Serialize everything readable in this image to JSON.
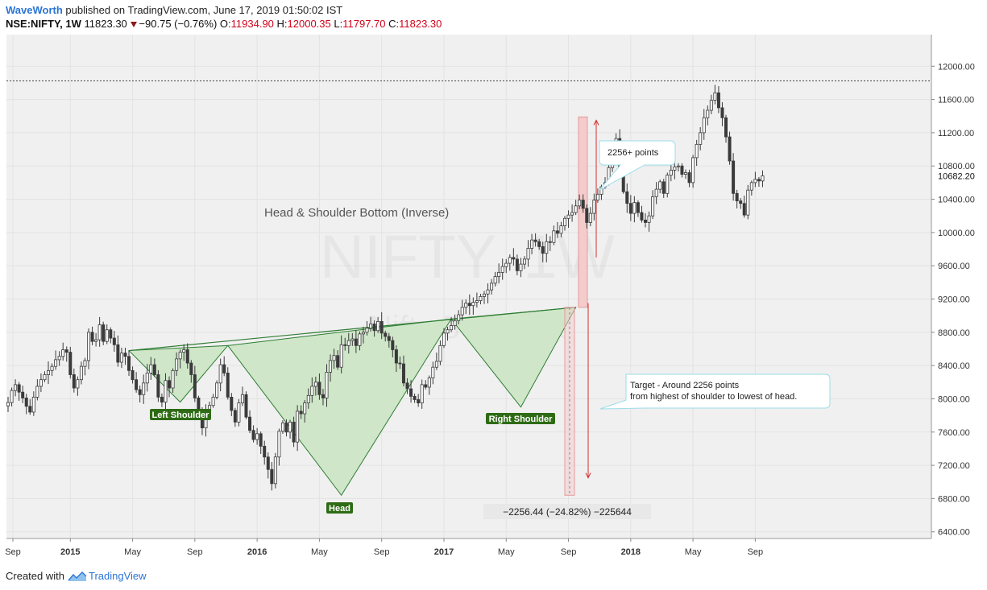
{
  "header": {
    "author": "WaveWorth",
    "published": "published on TradingView.com, June 17, 2019 01:50:02 IST",
    "symbol": "NSE:NIFTY, 1W",
    "last": "11823.30",
    "change": "−90.75 (−0.76%)",
    "o_label": "O:",
    "o_value": "11934.90",
    "h_label": "H:",
    "h_value": "12000.35",
    "l_label": "L:",
    "l_value": "11797.70",
    "c_label": "C:",
    "c_value": "11823.30"
  },
  "footer": {
    "created": "Created with",
    "brand": "TradingView"
  },
  "chart_data": {
    "type": "candlestick",
    "watermark_main": "NIFTY, 1W",
    "watermark_sub": "Nifty 50 Index",
    "y_ticks": [
      6400,
      6800,
      7200,
      7600,
      8000,
      8400,
      8800,
      9200,
      9600,
      10000,
      10400,
      10800,
      11200,
      11600,
      12000
    ],
    "y_tick_labels": [
      "6400.00",
      "6800.00",
      "7200.00",
      "7600.00",
      "8000.00",
      "8400.00",
      "8800.00",
      "9200.00",
      "9600.00",
      "10000.00",
      "10400.00",
      "10800.00",
      "11200.00",
      "11600.00",
      "12000.00"
    ],
    "last_price_label": "10682.20",
    "last_price": 10682.2,
    "high_line": 11823,
    "ylim": [
      6320,
      12380
    ],
    "x_ticks": [
      {
        "label": "Sep",
        "i": 0
      },
      {
        "label": "2015",
        "i": 17,
        "bold": true
      },
      {
        "label": "May",
        "i": 34
      },
      {
        "label": "Sep",
        "i": 51
      },
      {
        "label": "2016",
        "i": 68,
        "bold": true
      },
      {
        "label": "May",
        "i": 85
      },
      {
        "label": "Sep",
        "i": 102
      },
      {
        "label": "2017",
        "i": 119,
        "bold": true
      },
      {
        "label": "May",
        "i": 136
      },
      {
        "label": "Sep",
        "i": 153
      },
      {
        "label": "2018",
        "i": 170,
        "bold": true
      },
      {
        "label": "May",
        "i": 187
      },
      {
        "label": "Sep",
        "i": 204
      }
    ],
    "closes": [
      7955,
      8100,
      8170,
      8080,
      8010,
      7910,
      7840,
      8020,
      8150,
      8230,
      8290,
      8340,
      8390,
      8470,
      8510,
      8590,
      8560,
      8290,
      8130,
      8230,
      8390,
      8460,
      8800,
      8690,
      8710,
      8890,
      8690,
      8830,
      8730,
      8650,
      8440,
      8550,
      8510,
      8340,
      8230,
      8110,
      8050,
      8190,
      8310,
      8410,
      8290,
      8020,
      7960,
      8220,
      8130,
      8340,
      8480,
      8560,
      8590,
      8430,
      8290,
      8010,
      7810,
      7650,
      7850,
      7920,
      8020,
      8190,
      8410,
      8310,
      8020,
      7860,
      7720,
      7950,
      8050,
      7780,
      7620,
      7510,
      7580,
      7430,
      7300,
      7150,
      6980,
      7300,
      7610,
      7710,
      7600,
      7720,
      7480,
      7850,
      7820,
      7950,
      8040,
      8150,
      8200,
      8050,
      8010,
      8320,
      8460,
      8520,
      8380,
      8650,
      8640,
      8700,
      8720,
      8640,
      8780,
      8800,
      8850,
      8900,
      8820,
      8930,
      8790,
      8750,
      8700,
      8590,
      8430,
      8420,
      8190,
      8120,
      8030,
      7990,
      7950,
      8170,
      8140,
      8250,
      8380,
      8450,
      8640,
      8790,
      8830,
      8880,
      8940,
      9010,
      9100,
      9150,
      9120,
      9160,
      9180,
      9230,
      9260,
      9310,
      9390,
      9470,
      9520,
      9590,
      9630,
      9700,
      9680,
      9540,
      9620,
      9680,
      9810,
      9910,
      9890,
      9830,
      9750,
      9890,
      9880,
      10020,
      9990,
      10080,
      10170,
      10210,
      10240,
      10320,
      10390,
      10290,
      10120,
      10230,
      10390,
      10460,
      10550,
      10600,
      10780,
      11050,
      11130,
      10760,
      10490,
      10350,
      10230,
      10360,
      10240,
      10150,
      10120,
      10200,
      10430,
      10520,
      10610,
      10470,
      10690,
      10750,
      10790,
      10800,
      10700,
      10720,
      10600,
      10900,
      11060,
      11200,
      11380,
      11470,
      11590,
      11680,
      11500,
      11380,
      11150,
      10860,
      10470,
      10380,
      10350,
      10210,
      10510,
      10600,
      10640,
      10620,
      10682
    ]
  },
  "annotations": {
    "pattern_title": "Head & Shoulder Bottom (Inverse)",
    "left_shoulder": "Left Shoulder",
    "head": "Head",
    "right_shoulder": "Right Shoulder",
    "callout_points": "2256+ points",
    "callout_target_1": "Target - Around 2256 points",
    "callout_target_2": "from highest of shoulder to lowest of head.",
    "measure": "−2256.44 (−24.82%) −225644"
  },
  "colors": {
    "background": "#f0f0f0",
    "candle": "#3a3a3a",
    "pattern_fill": "#cfe6c9",
    "pattern_line": "#2e7d32",
    "label_bg": "#2e6b15",
    "red_arrow": "#d32f2f",
    "range_fill": "#f4cccc",
    "callout_border": "#9bdde8"
  }
}
